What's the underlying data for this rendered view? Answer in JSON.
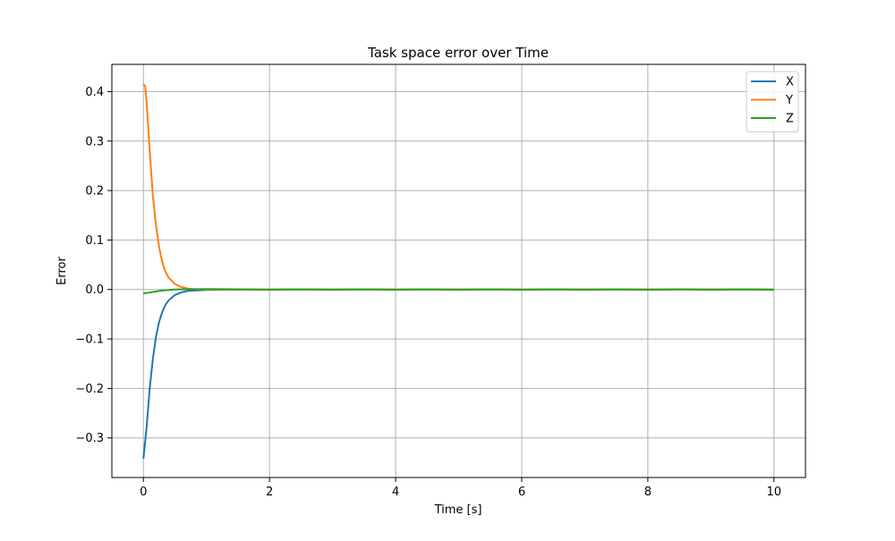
{
  "chart_data": {
    "type": "line",
    "title": "Task space error over Time",
    "xlabel": "Time [s]",
    "ylabel": "Error",
    "xlim": [
      -0.5,
      10.5
    ],
    "ylim": [
      -0.38,
      0.455
    ],
    "xticks": [
      0,
      2,
      4,
      6,
      8,
      10
    ],
    "xtick_labels": [
      "0",
      "2",
      "4",
      "6",
      "8",
      "10"
    ],
    "yticks": [
      -0.3,
      -0.2,
      -0.1,
      0.0,
      0.1,
      0.2,
      0.3,
      0.4
    ],
    "ytick_labels": [
      "−0.3",
      "−0.2",
      "−0.1",
      "0.0",
      "0.1",
      "0.2",
      "0.3",
      "0.4"
    ],
    "grid": true,
    "legend_position": "top-right",
    "series": [
      {
        "name": "X",
        "color": "#1f77b4",
        "x": [
          0,
          0.05,
          0.1,
          0.15,
          0.2,
          0.25,
          0.3,
          0.35,
          0.4,
          0.5,
          0.6,
          0.7,
          0.8,
          0.9,
          1.0,
          1.2,
          1.5,
          2.0,
          3.0,
          4.0,
          5.0,
          6.0,
          7.0,
          8.0,
          9.0,
          10.0
        ],
        "values": [
          -0.342,
          -0.28,
          -0.2,
          -0.14,
          -0.095,
          -0.065,
          -0.045,
          -0.031,
          -0.022,
          -0.011,
          -0.006,
          -0.003,
          -0.002,
          -0.0015,
          -0.001,
          -0.0005,
          -0.0002,
          0.0,
          0.0,
          0.0,
          0.0,
          0.0,
          0.0,
          0.0,
          0.0,
          0.0
        ]
      },
      {
        "name": "Y",
        "color": "#ff7f0e",
        "x": [
          0,
          0.03,
          0.05,
          0.1,
          0.15,
          0.2,
          0.25,
          0.3,
          0.35,
          0.4,
          0.5,
          0.6,
          0.7,
          0.8,
          0.9,
          1.0,
          1.2,
          1.5,
          2.0,
          3.0,
          4.0,
          5.0,
          6.0,
          7.0,
          8.0,
          9.0,
          10.0
        ],
        "values": [
          0.415,
          0.41,
          0.38,
          0.28,
          0.19,
          0.13,
          0.085,
          0.055,
          0.036,
          0.024,
          0.011,
          0.005,
          0.002,
          0.001,
          0.0005,
          0.0,
          0.0,
          0.0,
          0.0,
          0.0,
          0.0,
          0.0,
          0.0,
          0.0,
          0.0,
          0.0,
          0.0
        ]
      },
      {
        "name": "Z",
        "color": "#2ca02c",
        "x": [
          0,
          0.1,
          0.2,
          0.3,
          0.4,
          0.5,
          0.7,
          1.0,
          1.5,
          2.0,
          2.5,
          3.0,
          3.5,
          4.0,
          4.5,
          5.0,
          5.5,
          6.0,
          6.5,
          7.0,
          7.5,
          8.0,
          8.5,
          9.0,
          9.5,
          10.0
        ],
        "values": [
          -0.008,
          -0.006,
          -0.004,
          -0.002,
          -0.001,
          0.0,
          0.0005,
          0.0008,
          0.0005,
          -0.0005,
          0.0005,
          -0.0005,
          0.0005,
          -0.0005,
          0.0005,
          -0.0005,
          0.0005,
          -0.0005,
          0.0005,
          -0.0005,
          0.0005,
          -0.0005,
          0.0005,
          -0.0005,
          0.0005,
          -0.0005
        ]
      }
    ]
  }
}
